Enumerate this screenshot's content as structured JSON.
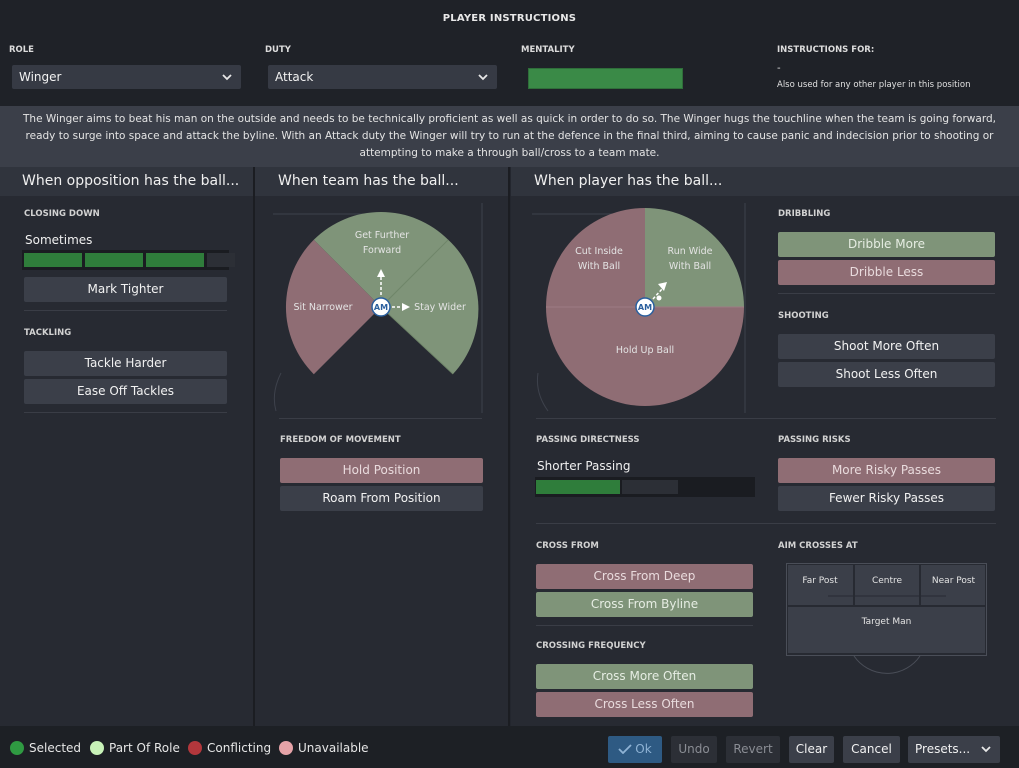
{
  "window": {
    "title": "PLAYER INSTRUCTIONS"
  },
  "top": {
    "role_label": "ROLE",
    "role_value": "Winger",
    "duty_label": "DUTY",
    "duty_value": "Attack",
    "mentality_label": "MENTALITY",
    "instructions_for_label": "INSTRUCTIONS FOR:",
    "instructions_for_value": "-",
    "instructions_for_note": "Also used for any other player in this position"
  },
  "description": "The Winger aims to beat his man on the outside and needs to be technically proficient as well as quick in order to do so. The Winger hugs the touchline when the team is going forward, ready to surge into space and attack the byline. With an Attack duty the Winger will try to run at the defence in the final third, aiming to cause panic and indecision prior to shooting or attempting to make a through ball/cross to a team mate.",
  "opposition": {
    "header": "When opposition has the ball...",
    "closing_down_label": "CLOSING DOWN",
    "closing_down_value": "Sometimes",
    "closing_down_level": 3,
    "closing_down_steps": 4,
    "mark_tighter": "Mark Tighter",
    "tackling_label": "TACKLING",
    "tackle_harder": "Tackle Harder",
    "ease_off_tackles": "Ease Off Tackles"
  },
  "team": {
    "header": "When team has the ball...",
    "pitch": {
      "forward": "Get Further Forward",
      "narrow": "Sit Narrower",
      "wide": "Stay Wider",
      "position": "AM"
    },
    "freedom_label": "FREEDOM OF MOVEMENT",
    "hold_position": "Hold Position",
    "roam_from_position": "Roam From Position"
  },
  "player": {
    "header": "When player has the ball...",
    "pitch": {
      "cut_inside": "Cut Inside With Ball",
      "run_wide": "Run Wide With Ball",
      "hold_up": "Hold Up Ball",
      "position": "AM"
    },
    "dribbling_label": "DRIBBLING",
    "dribble_more": "Dribble More",
    "dribble_less": "Dribble Less",
    "shooting_label": "SHOOTING",
    "shoot_more": "Shoot More Often",
    "shoot_less": "Shoot Less Often",
    "passing_directness_label": "PASSING DIRECTNESS",
    "passing_directness_value": "Shorter Passing",
    "passing_directness_level": 0.6,
    "passing_risks_label": "PASSING RISKS",
    "more_risky": "More Risky Passes",
    "fewer_risky": "Fewer Risky Passes",
    "cross_from_label": "CROSS FROM",
    "cross_from_deep": "Cross From Deep",
    "cross_from_byline": "Cross From Byline",
    "crossing_freq_label": "CROSSING FREQUENCY",
    "cross_more": "Cross More Often",
    "cross_less": "Cross Less Often",
    "aim_crosses_label": "AIM CROSSES AT",
    "aim": {
      "far_post": "Far Post",
      "centre": "Centre",
      "near_post": "Near Post",
      "target_man": "Target Man"
    }
  },
  "legend": [
    {
      "label": "Selected",
      "color": "#2f9a42"
    },
    {
      "label": "Part Of Role",
      "color": "#c8f2b8"
    },
    {
      "label": "Conflicting",
      "color": "#b3373c"
    },
    {
      "label": "Unavailable",
      "color": "#e6a3a8"
    }
  ],
  "footer": {
    "ok": "Ok",
    "undo": "Undo",
    "revert": "Revert",
    "clear": "Clear",
    "cancel": "Cancel",
    "presets": "Presets..."
  },
  "colors": {
    "selected_green": "#2f7d3b",
    "part_of_role": "#7f9479",
    "unavailable": "#8f6d74",
    "accent_blue": "#2e5a83"
  }
}
